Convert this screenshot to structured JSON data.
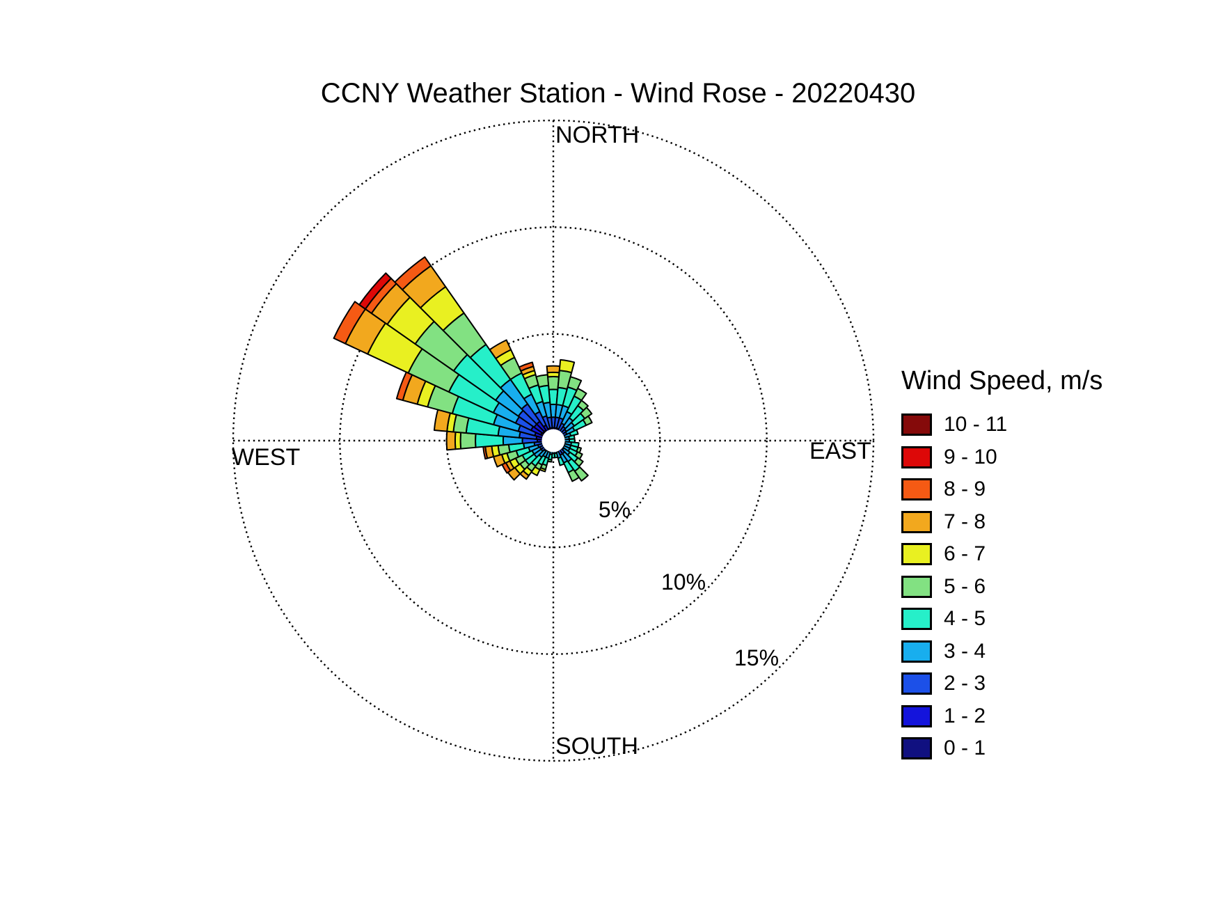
{
  "title": "CCNY Weather Station - Wind Rose - 20220430",
  "compass": {
    "north": "NORTH",
    "south": "SOUTH",
    "east": "EAST",
    "west": "WEST"
  },
  "ring_labels": [
    "5%",
    "10%",
    "15%"
  ],
  "legend": {
    "title": "Wind Speed, m/s",
    "entries": [
      {
        "label": "10 - 11",
        "color": "#850A0A"
      },
      {
        "label": "9 - 10",
        "color": "#DD0808"
      },
      {
        "label": "8 - 9",
        "color": "#F55A14"
      },
      {
        "label": "7 - 8",
        "color": "#F2A81E"
      },
      {
        "label": "6 - 7",
        "color": "#E9F021"
      },
      {
        "label": "5 - 6",
        "color": "#82E182"
      },
      {
        "label": "4 - 5",
        "color": "#26EFC9"
      },
      {
        "label": "3 - 4",
        "color": "#18AEEE"
      },
      {
        "label": "2 - 3",
        "color": "#1C50E8"
      },
      {
        "label": "1 - 2",
        "color": "#1414DC"
      },
      {
        "label": "0 - 1",
        "color": "#101080"
      }
    ]
  },
  "chart_data": {
    "type": "wind-rose-stacked-polar-bar",
    "title": "CCNY Weather Station - Wind Rose - 20220430",
    "units": "percent frequency of wind direction, stacked by wind speed bin",
    "sector_width_deg": 10,
    "rings_percent": [
      5,
      10,
      15
    ],
    "grid_style": "dotted",
    "legend_position": "right",
    "speed_bins_mps": [
      "0 - 1",
      "1 - 2",
      "2 - 3",
      "3 - 4",
      "4 - 5",
      "5 - 6",
      "6 - 7",
      "7 - 8",
      "8 - 9",
      "9 - 10",
      "10 - 11"
    ],
    "bin_colors": [
      "#101080",
      "#1414DC",
      "#1C50E8",
      "#18AEEE",
      "#26EFC9",
      "#82E182",
      "#E9F021",
      "#F2A81E",
      "#F55A14",
      "#DD0808",
      "#850A0A"
    ],
    "directions_deg": [
      0,
      10,
      20,
      30,
      40,
      50,
      60,
      70,
      80,
      90,
      100,
      110,
      120,
      130,
      140,
      150,
      160,
      170,
      180,
      190,
      200,
      210,
      220,
      230,
      240,
      250,
      260,
      270,
      280,
      290,
      300,
      310,
      320,
      330,
      340,
      350
    ],
    "frequencies_percent": [
      [
        0.3,
        0.3,
        0.5,
        0.6,
        0.7,
        0.6,
        0.2,
        0.3,
        0.0,
        0.0,
        0.0
      ],
      [
        0.3,
        0.3,
        0.5,
        0.6,
        0.8,
        0.8,
        0.5,
        0.0,
        0.0,
        0.0,
        0.0
      ],
      [
        0.3,
        0.3,
        0.5,
        0.6,
        0.9,
        0.5,
        0.0,
        0.0,
        0.0,
        0.0,
        0.0
      ],
      [
        0.25,
        0.25,
        0.4,
        0.6,
        0.8,
        0.4,
        0.0,
        0.0,
        0.0,
        0.0,
        0.0
      ],
      [
        0.2,
        0.2,
        0.4,
        0.5,
        0.7,
        0.3,
        0.0,
        0.0,
        0.0,
        0.0,
        0.0
      ],
      [
        0.2,
        0.2,
        0.35,
        0.45,
        0.6,
        0.4,
        0.0,
        0.0,
        0.0,
        0.0,
        0.0
      ],
      [
        0.2,
        0.2,
        0.3,
        0.4,
        0.6,
        0.3,
        0.0,
        0.0,
        0.0,
        0.0,
        0.0
      ],
      [
        0.15,
        0.15,
        0.25,
        0.3,
        0.35,
        0.0,
        0.0,
        0.0,
        0.0,
        0.0,
        0.0
      ],
      [
        0.15,
        0.15,
        0.2,
        0.25,
        0.25,
        0.0,
        0.0,
        0.0,
        0.0,
        0.0,
        0.0
      ],
      [
        0.15,
        0.15,
        0.2,
        0.25,
        0.25,
        0.0,
        0.0,
        0.0,
        0.0,
        0.0,
        0.0
      ],
      [
        0.15,
        0.15,
        0.25,
        0.3,
        0.35,
        0.0,
        0.0,
        0.0,
        0.0,
        0.0,
        0.0
      ],
      [
        0.15,
        0.15,
        0.25,
        0.3,
        0.35,
        0.15,
        0.0,
        0.0,
        0.0,
        0.0,
        0.0
      ],
      [
        0.15,
        0.15,
        0.25,
        0.3,
        0.4,
        0.25,
        0.0,
        0.0,
        0.0,
        0.0,
        0.0
      ],
      [
        0.15,
        0.15,
        0.3,
        0.35,
        0.45,
        0.3,
        0.0,
        0.0,
        0.0,
        0.0,
        0.0
      ],
      [
        0.2,
        0.2,
        0.35,
        0.45,
        0.55,
        0.55,
        0.0,
        0.0,
        0.0,
        0.0,
        0.0
      ],
      [
        0.2,
        0.2,
        0.35,
        0.4,
        0.5,
        0.45,
        0.0,
        0.0,
        0.0,
        0.0,
        0.0
      ],
      [
        0.15,
        0.15,
        0.25,
        0.3,
        0.35,
        0.0,
        0.0,
        0.0,
        0.0,
        0.0,
        0.0
      ],
      [
        0.1,
        0.1,
        0.2,
        0.2,
        0.2,
        0.0,
        0.0,
        0.0,
        0.0,
        0.0,
        0.0
      ],
      [
        0.1,
        0.1,
        0.2,
        0.2,
        0.2,
        0.0,
        0.0,
        0.0,
        0.0,
        0.0,
        0.0
      ],
      [
        0.1,
        0.1,
        0.2,
        0.25,
        0.25,
        0.1,
        0.0,
        0.0,
        0.0,
        0.0,
        0.0
      ],
      [
        0.15,
        0.15,
        0.25,
        0.3,
        0.35,
        0.2,
        0.1,
        0.0,
        0.0,
        0.0,
        0.0
      ],
      [
        0.15,
        0.15,
        0.25,
        0.3,
        0.4,
        0.25,
        0.3,
        0.0,
        0.0,
        0.0,
        0.0
      ],
      [
        0.15,
        0.15,
        0.3,
        0.35,
        0.5,
        0.3,
        0.25,
        0.2,
        0.0,
        0.0,
        0.0
      ],
      [
        0.2,
        0.2,
        0.3,
        0.4,
        0.5,
        0.3,
        0.3,
        0.4,
        0.0,
        0.0,
        0.0
      ],
      [
        0.2,
        0.2,
        0.3,
        0.4,
        0.5,
        0.35,
        0.3,
        0.2,
        0.2,
        0.0,
        0.0
      ],
      [
        0.2,
        0.2,
        0.35,
        0.45,
        0.6,
        0.45,
        0.25,
        0.4,
        0.0,
        0.0,
        0.0
      ],
      [
        0.25,
        0.25,
        0.4,
        0.5,
        0.7,
        0.5,
        0.3,
        0.3,
        0.1,
        0.0,
        0.0
      ],
      [
        0.4,
        0.35,
        0.7,
        0.9,
        1.3,
        0.7,
        0.25,
        0.4,
        0.0,
        0.0,
        0.0
      ],
      [
        0.4,
        0.4,
        0.8,
        1.0,
        1.5,
        0.6,
        0.3,
        0.6,
        0.0,
        0.0,
        0.0
      ],
      [
        0.5,
        0.4,
        0.8,
        1.2,
        2.0,
        1.2,
        0.5,
        0.7,
        0.3,
        0.0,
        0.0
      ],
      [
        0.65,
        0.5,
        0.8,
        1.15,
        2.3,
        2.1,
        2.1,
        1.15,
        0.6,
        0.0,
        0.0
      ],
      [
        0.6,
        0.5,
        0.9,
        1.3,
        2.4,
        2.2,
        1.6,
        0.9,
        0.35,
        0.35,
        0.0
      ],
      [
        0.6,
        0.5,
        1.0,
        1.4,
        2.0,
        1.8,
        1.5,
        1.2,
        0.5,
        0.0,
        0.0
      ],
      [
        0.4,
        0.4,
        0.7,
        0.9,
        1.1,
        0.8,
        0.4,
        0.5,
        0.0,
        0.0,
        0.0
      ],
      [
        0.3,
        0.3,
        0.6,
        0.7,
        0.8,
        0.5,
        0.2,
        0.2,
        0.2,
        0.0,
        0.0
      ],
      [
        0.3,
        0.3,
        0.5,
        0.7,
        0.8,
        0.5,
        0.0,
        0.0,
        0.0,
        0.0,
        0.0
      ]
    ]
  }
}
